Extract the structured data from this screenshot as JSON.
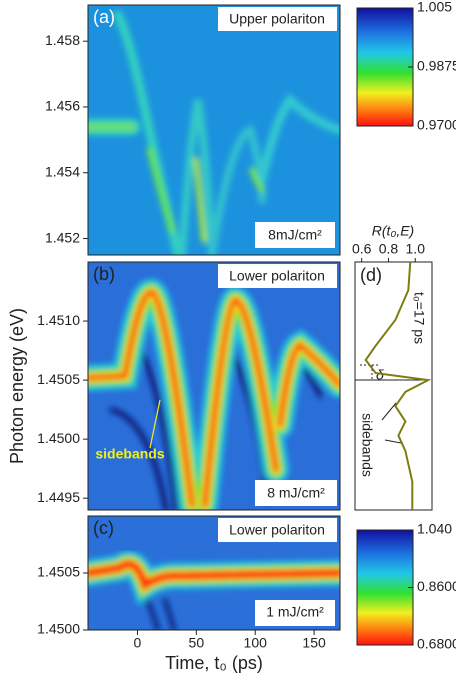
{
  "chart_data": [
    {
      "type": "heatmap",
      "panel_label": "(a)",
      "title": "Upper polariton",
      "annotation": "8mJ/cm²",
      "xlim": [
        -42,
        172
      ],
      "ylim": [
        1.4515,
        1.4591
      ],
      "yticks": [
        1.452,
        1.454,
        1.456,
        1.458
      ],
      "colorbar": {
        "lim": [
          0.97,
          1.005
        ],
        "ticks": [
          1.005,
          0.9875,
          {
            "value": 0.97,
            "label": "0.9700"
          }
        ]
      }
    },
    {
      "type": "heatmap",
      "panel_label": "(b)",
      "title": "Lower polariton",
      "annotation": "8 mJ/cm²",
      "callout": "sidebands",
      "ylabel": "Photon energy (eV)",
      "xlim": [
        -42,
        172
      ],
      "ylim": [
        1.4494,
        1.4515
      ],
      "yticks": [
        1.4495,
        {
          "value": 1.45,
          "label": "1.4500"
        },
        1.4505,
        {
          "value": 1.451,
          "label": "1.4510"
        }
      ]
    },
    {
      "type": "heatmap",
      "panel_label": "(c)",
      "title": "Lower polariton",
      "annotation": "1 mJ/cm²",
      "xlabel": "Time, t₀ (ps)",
      "xlim": [
        -42,
        172
      ],
      "xticks": [
        0,
        50,
        100,
        150
      ],
      "ylim": [
        1.45,
        1.451
      ],
      "yticks": [
        {
          "value": 1.45,
          "label": "1.4500"
        },
        1.4505
      ],
      "colorbar": {
        "lim": [
          0.68,
          1.04
        ],
        "ticks": [
          {
            "value": 1.04,
            "label": "1.040"
          },
          {
            "value": 0.86,
            "label": "0.8600"
          },
          {
            "value": 0.68,
            "label": "0.6800"
          }
        ]
      }
    },
    {
      "type": "line",
      "panel_label": "(d)",
      "title": "t₀=17 ps",
      "xlabel": "R(t₀,E)",
      "annotation": "sidebands",
      "symbol": "δ",
      "xlim": [
        0.55,
        1.125
      ],
      "xticks": [
        0.6,
        0.8,
        {
          "value": 1,
          "label": "1.0"
        }
      ],
      "ylim": [
        1.4494,
        1.4515
      ],
      "y": [
        1.4515,
        1.45126,
        1.45101,
        1.45079,
        1.45067,
        1.45056,
        1.4505,
        1.4504,
        1.45028,
        1.45015,
        1.45003,
        1.4499,
        1.44964,
        1.4494
      ],
      "series": [
        {
          "color": "#7d7d12",
          "values": [
            0.963,
            0.948,
            0.852,
            0.704,
            0.63,
            0.704,
            1.096,
            0.926,
            0.852,
            0.926,
            0.874,
            0.926,
            0.978,
            0.978
          ]
        }
      ]
    }
  ]
}
